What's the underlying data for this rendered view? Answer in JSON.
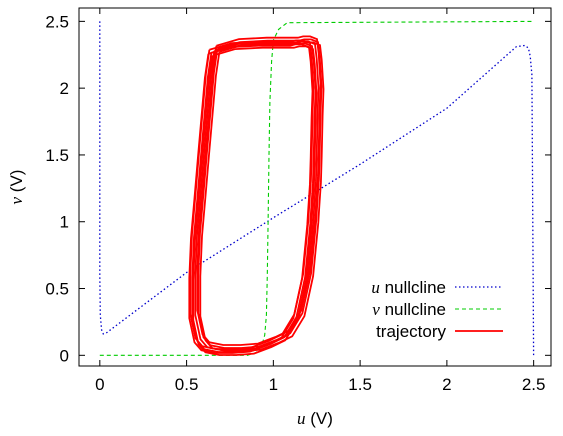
{
  "chart_data": {
    "type": "line",
    "xlabel": {
      "var": "u",
      "unit": " (V)"
    },
    "ylabel": {
      "var": "v",
      "unit": " (V)"
    },
    "xlim": [
      -0.12,
      2.6
    ],
    "ylim": [
      -0.08,
      2.6
    ],
    "xticks": [
      0,
      0.5,
      1,
      1.5,
      2,
      2.5
    ],
    "yticks": [
      0,
      0.5,
      1,
      1.5,
      2,
      2.5
    ],
    "xtick_labels": [
      "0",
      "0.5",
      "1",
      "1.5",
      "2",
      "2.5"
    ],
    "ytick_labels": [
      "0",
      "0.5",
      "1",
      "1.5",
      "2",
      "2.5"
    ],
    "legend_position": "bottom-right",
    "series": [
      {
        "name": "u nullcline",
        "legend": {
          "var": "u",
          "rest": " nullcline"
        },
        "color": "#0000cc",
        "style": "dotted",
        "x": [
          0.0,
          0.0,
          0.0,
          0.003,
          0.01,
          0.02,
          0.04,
          0.5,
          1.0,
          1.5,
          2.0,
          2.4,
          2.45,
          2.47,
          2.48,
          2.49,
          2.5
        ],
        "y": [
          2.5,
          1.5,
          0.6,
          0.3,
          0.19,
          0.16,
          0.17,
          0.62,
          1.03,
          1.43,
          1.85,
          2.31,
          2.32,
          2.3,
          2.24,
          2.1,
          0.0
        ]
      },
      {
        "name": "v nullcline",
        "legend": {
          "var": "v",
          "rest": " nullcline"
        },
        "color": "#00cc00",
        "style": "dashed",
        "x": [
          0.0,
          0.85,
          0.9,
          0.93,
          0.95,
          0.96,
          0.965,
          0.97,
          0.975,
          0.98,
          0.99,
          1.0,
          1.03,
          1.08,
          2.5
        ],
        "y": [
          0.0,
          0.0,
          0.02,
          0.06,
          0.15,
          0.3,
          0.6,
          1.0,
          1.5,
          1.9,
          2.2,
          2.36,
          2.44,
          2.49,
          2.5
        ]
      },
      {
        "name": "trajectory",
        "legend": {
          "var": "",
          "rest": "trajectory"
        },
        "color": "#ff0000",
        "style": "solid",
        "x": [
          0.66,
          0.79,
          0.95,
          1.05,
          1.13,
          1.16,
          1.2,
          1.24,
          1.25,
          1.26,
          1.255,
          1.25,
          1.245,
          1.24,
          1.235,
          1.23,
          1.2,
          1.15,
          1.08,
          1.0,
          0.9,
          0.8,
          0.7,
          0.62,
          0.58,
          0.55,
          0.55,
          0.56,
          0.58,
          0.6,
          0.62,
          0.64,
          0.66
        ],
        "y": [
          2.28,
          2.33,
          2.34,
          2.34,
          2.34,
          2.35,
          2.35,
          2.33,
          2.22,
          2.0,
          1.8,
          1.5,
          1.3,
          1.2,
          1.1,
          1.0,
          0.6,
          0.3,
          0.15,
          0.1,
          0.05,
          0.04,
          0.04,
          0.06,
          0.12,
          0.3,
          0.6,
          0.9,
          1.2,
          1.5,
          1.8,
          2.1,
          2.28
        ]
      }
    ]
  }
}
